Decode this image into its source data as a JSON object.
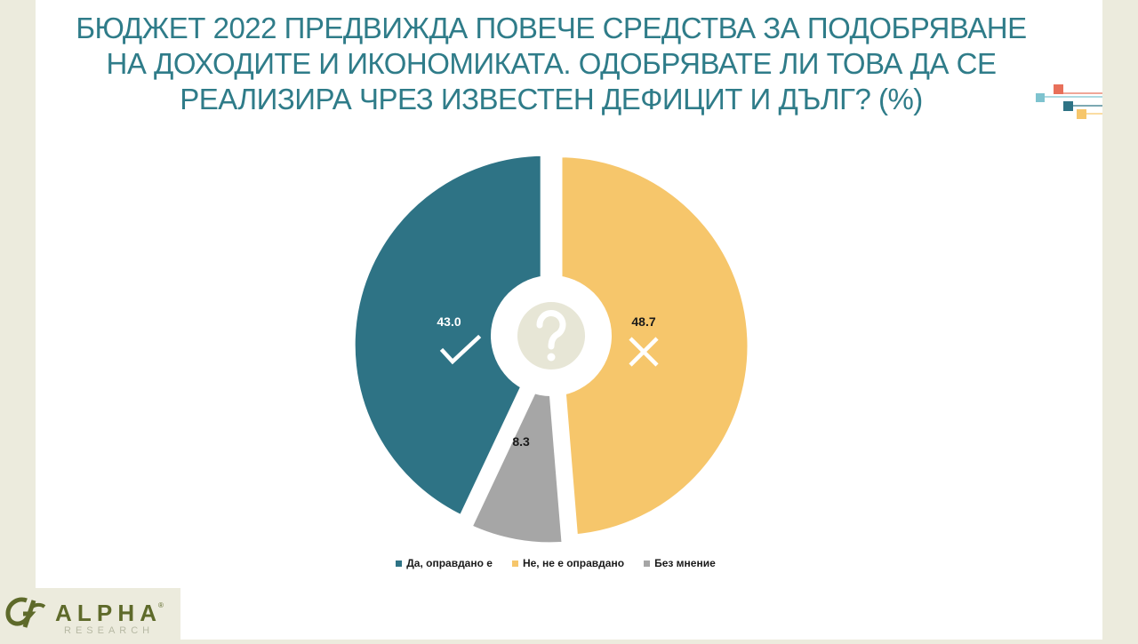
{
  "title": "БЮДЖЕТ 2022 ПРЕДВИЖДА ПОВЕЧЕ СРЕДСТВА ЗА ПОДОБРЯВАНЕ НА ДОХОДИТЕ И ИКОНОМИКАТА. ОДОБРЯВАТЕ ЛИ ТОВА ДА СЕ РЕАЛИЗИРА ЧРЕЗ ИЗВЕСТЕН ДЕФИЦИТ И ДЪЛГ? (%)",
  "title_lines": [
    "БЮДЖЕТ 2022 ПРЕДВИЖДА ПОВЕЧЕ СРЕДСТВА ЗА ПОДОБРЯВАНЕ",
    "НА ДОХОДИТЕ И ИКОНОМИКАТА. ОДОБРЯВАТЕ ЛИ ТОВА ДА СЕ",
    "РЕАЛИЗИРА ЧРЕЗ ИЗВЕСТЕН ДЕФИЦИТ И ДЪЛГ? (%)"
  ],
  "chart_data": {
    "type": "pie",
    "labels": [
      "Да, оправдано е",
      "Не, не е оправдано",
      "Без мнение"
    ],
    "values": [
      43.0,
      48.7,
      8.3
    ],
    "value_labels": [
      "43.0",
      "48.7",
      "8.3"
    ],
    "colors": [
      "#2e7385",
      "#f6c66b",
      "#a6a6a6"
    ],
    "slice_icons": [
      "check-icon",
      "cross-icon",
      ""
    ],
    "center_icon": "question-icon",
    "legend_position": "bottom"
  },
  "logo": {
    "name": "ALPHA",
    "registered": "®",
    "tagline": "RESEARCH"
  },
  "colors": {
    "title": "#2f7c89",
    "page_background": "#ecebdd",
    "slide_background": "#ffffff",
    "decor": [
      "#7ec3cf",
      "#e8705a",
      "#2e7385",
      "#f6c66b"
    ]
  }
}
